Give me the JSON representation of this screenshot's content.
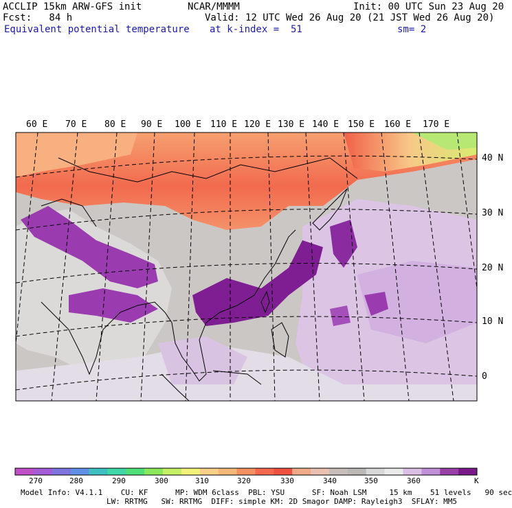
{
  "header": {
    "left_line1": "ACCLIP 15km ARW-GFS init",
    "left_line2": "Fcst:   84 h",
    "left_line3": "Equivalent potential temperature",
    "center_line1": "NCAR/MMMM",
    "center_line2": "Valid: 12 UTC Wed 26 Aug 20 (21 JST Wed 26 Aug 20)",
    "center_line3": "at k-index =  51",
    "right_line1": "Init: 00 UTC Sun 23 Aug 20",
    "right_line3": "sm= 2"
  },
  "map": {
    "lon_labels": [
      "60 E",
      "70 E",
      "80 E",
      "90 E",
      "100 E",
      "110 E",
      "120 E",
      "130 E",
      "140 E",
      "150 E",
      "160 E",
      "170 E"
    ],
    "lat_labels": [
      "40 N",
      "30 N",
      "20 N",
      "10 N",
      "0"
    ],
    "field": "equivalent potential temperature"
  },
  "colorbar": {
    "unit": "K",
    "tick_labels": [
      "270",
      "280",
      "290",
      "300",
      "310",
      "320",
      "330",
      "340",
      "350",
      "360"
    ],
    "colors": [
      "#c04fc8",
      "#a55cd8",
      "#7f73e0",
      "#5f8fe6",
      "#3fc0c0",
      "#3fd6a8",
      "#4fe07a",
      "#8ae85a",
      "#c4f066",
      "#f2f27a",
      "#f8d088",
      "#f6b878",
      "#f69060",
      "#f46850",
      "#f05040",
      "#f0aa88",
      "#eac0b0",
      "#c8bfba",
      "#bcb8b6",
      "#d8d8d8",
      "#eaeaea",
      "#dcbfe4",
      "#c090d8",
      "#9840a8",
      "#7a1a8a"
    ]
  },
  "footer": {
    "line1": "Model Info: V4.1.1    CU: KF      MP: WDM 6class  PBL: YSU      SF: Noah LSM     15 km    51 levels   90 sec",
    "line2": "LW: RRTMG   SW: RRTMG  DIFF: simple KM: 2D Smagor DAMP: Rayleigh3  SFLAY: MM5"
  }
}
